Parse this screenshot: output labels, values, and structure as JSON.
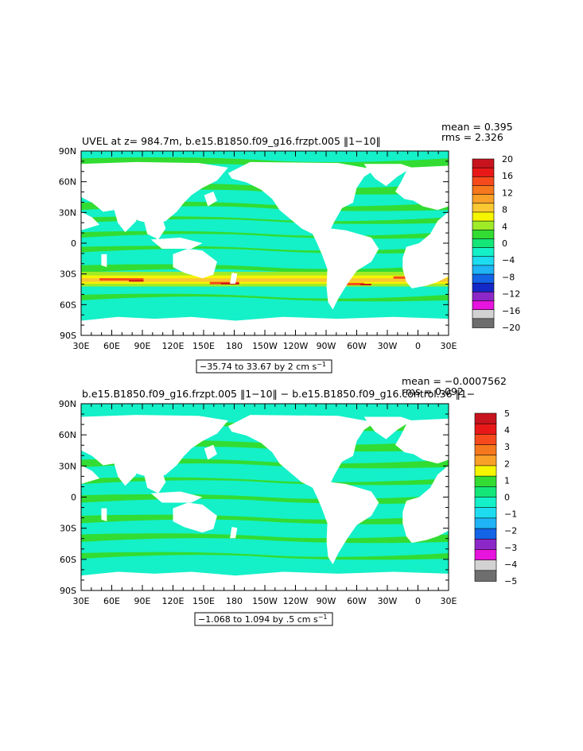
{
  "panels": [
    {
      "title": "UVEL at z= 984.7m, b.e15.B1850.f09_g16.frzpt.005 ‖1−10‖",
      "mean": "mean = 0.395",
      "rms": "rms = 2.326",
      "range_label": "−35.74 to 33.67 by 2 cm s",
      "range_sup": "−1",
      "lat_labels": [
        "90N",
        "60N",
        "30N",
        "0",
        "30S",
        "60S",
        "90S"
      ],
      "lon_labels": [
        "30E",
        "60E",
        "90E",
        "120E",
        "150E",
        "180",
        "150W",
        "120W",
        "90W",
        "60W",
        "30W",
        "0",
        "30E"
      ],
      "colorbar": {
        "labels": [
          "20",
          "16",
          "12",
          "8",
          "4",
          "0",
          "−4",
          "−8",
          "−12",
          "−16",
          "−20"
        ],
        "colors": [
          "#c8141e",
          "#e81818",
          "#f64a1c",
          "#f5781e",
          "#f8a028",
          "#fac832",
          "#f5f500",
          "#a0eb28",
          "#32dc32",
          "#14e678",
          "#14f0c8",
          "#1edcf0",
          "#1eb4f5",
          "#1464e6",
          "#1428c8",
          "#8c28c8",
          "#e614dc",
          "#d2d2d2",
          "#6e6e6e"
        ]
      }
    },
    {
      "title": "b.e15.B1850.f09_g16.frzpt.005 ‖1−10‖ − b.e15.B1850.f09_g16.control.36 ‖1−",
      "mean": "mean = −0.0007562",
      "rms": "rms = 0.092",
      "range_label": "−1.068 to 1.094 by .5 cm s",
      "range_sup": "−1",
      "lat_labels": [
        "90N",
        "60N",
        "30N",
        "0",
        "30S",
        "60S",
        "90S"
      ],
      "lon_labels": [
        "30E",
        "60E",
        "90E",
        "120E",
        "150E",
        "180",
        "150W",
        "120W",
        "90W",
        "60W",
        "30W",
        "0",
        "30E"
      ],
      "colorbar": {
        "labels": [
          "5",
          "4",
          "3",
          "2",
          "1",
          "0",
          "−1",
          "−2",
          "−3",
          "−4",
          "−5"
        ],
        "colors": [
          "#c8141e",
          "#e81818",
          "#f64a1c",
          "#f5781e",
          "#f8a028",
          "#f5f500",
          "#32dc32",
          "#14e678",
          "#14f0c8",
          "#1edcf0",
          "#1eb4f5",
          "#1464e6",
          "#8c28c8",
          "#e614dc",
          "#d2d2d2",
          "#6e6e6e"
        ]
      }
    }
  ]
}
